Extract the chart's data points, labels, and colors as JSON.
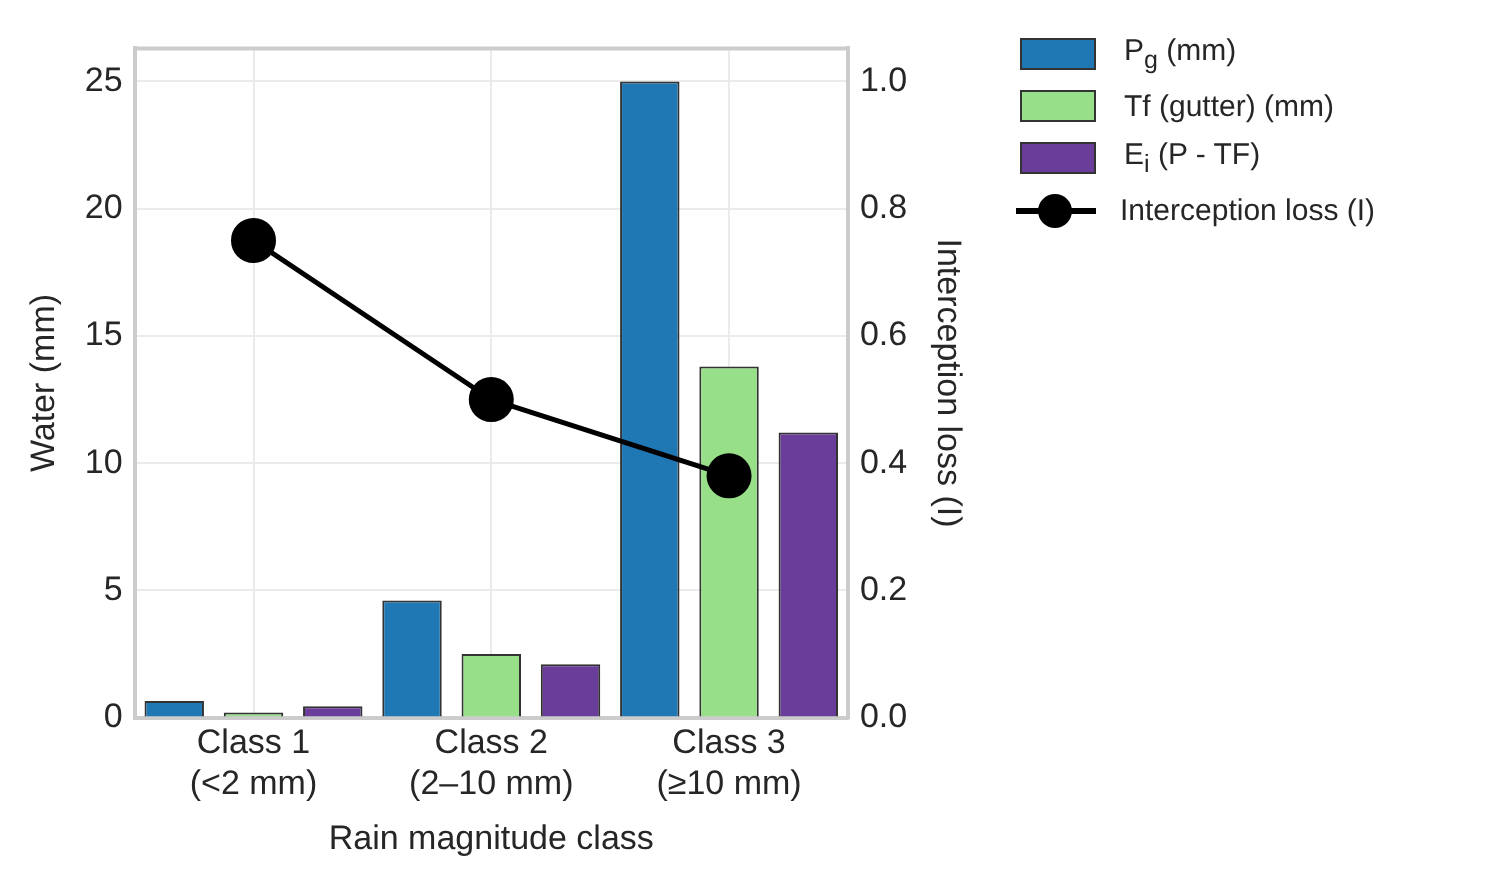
{
  "chart_data": {
    "type": "bar",
    "xlabel": "Rain magnitude class",
    "ylabel": "Water (mm)",
    "y2label": "Interception loss (I)",
    "categories": [
      "Class 1\n(<2 mm)",
      "Class 2\n(2–10 mm)",
      "Class 3\n(≥10 mm)"
    ],
    "series": [
      {
        "name": "P$_{g}$ (mm)",
        "color": "#1f77b4",
        "values": [
          0.65,
          4.6,
          25.0
        ]
      },
      {
        "name": "Tf (gutter) (mm)",
        "color": "#98df8a",
        "values": [
          0.2,
          2.5,
          13.8
        ]
      },
      {
        "name": "E$_{i}$ (P - TF)",
        "color": "#6a3d9a",
        "values": [
          0.45,
          2.1,
          11.2
        ]
      },
      {
        "name": "Interception loss (I)",
        "type": "line",
        "axis": "y2",
        "color": "#000000",
        "marker": "circle",
        "values": [
          0.75,
          0.5,
          0.38
        ]
      }
    ],
    "ylim": [
      0,
      26.3
    ],
    "yticks": [
      0,
      5,
      10,
      15,
      20,
      25
    ],
    "y2lim": [
      0,
      1.052
    ],
    "y2ticks": [
      {
        "value": 0,
        "label": "0.0"
      },
      {
        "value": 0.2,
        "label": "0.2"
      },
      {
        "value": 0.4,
        "label": "0.4"
      },
      {
        "value": 0.6,
        "label": "0.6"
      },
      {
        "value": 0.8,
        "label": "0.8"
      },
      {
        "value": 1,
        "label": "1.0"
      }
    ],
    "grid": true,
    "legend": "top right"
  }
}
